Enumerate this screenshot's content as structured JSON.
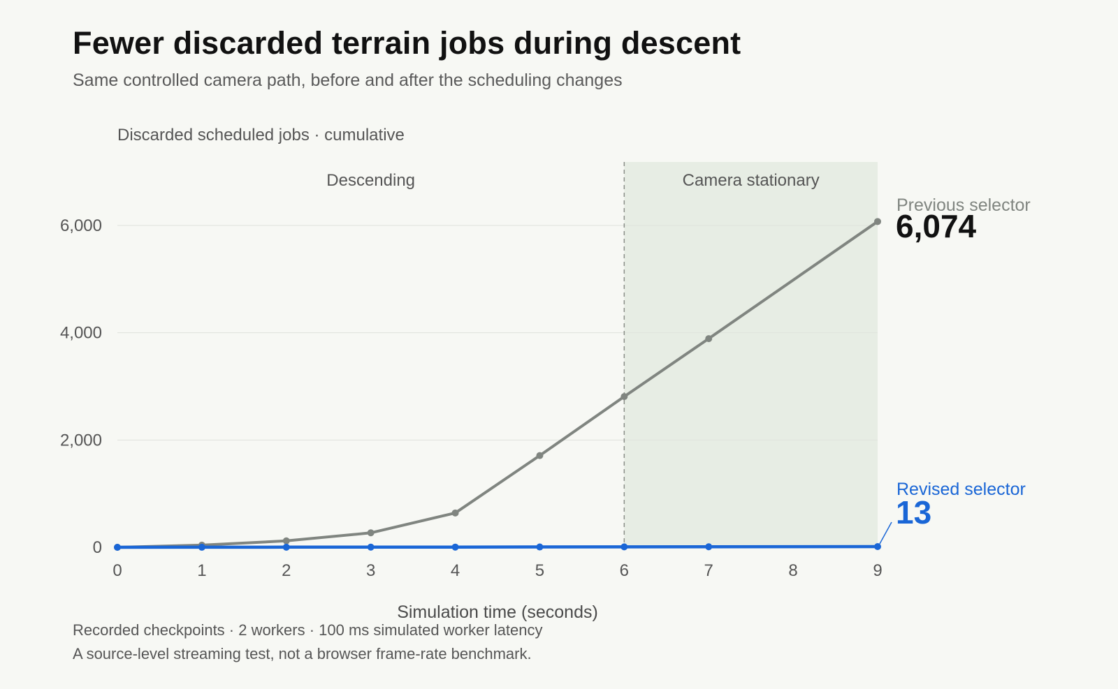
{
  "title": "Fewer discarded terrain jobs during descent",
  "subtitle": "Same controlled camera path, before and after the scheduling changes",
  "footnotes": [
    "Recorded checkpoints · 2 workers · 100 ms simulated worker latency",
    "A source-level streaming test, not a browser frame-rate benchmark."
  ],
  "colors": {
    "previous": "#808580",
    "revised": "#1a66d6",
    "shade": "#e7ede4",
    "grid": "#dfe2dc",
    "background": "#f7f8f4"
  },
  "chart_data": {
    "type": "line",
    "ylabel": "Discarded scheduled jobs · cumulative",
    "xlabel": "Simulation time (seconds)",
    "x": [
      0,
      1,
      2,
      3,
      4,
      5,
      6,
      7,
      8,
      9
    ],
    "xlim": [
      0,
      9
    ],
    "ylim": [
      0,
      6000
    ],
    "yticks": [
      0,
      2000,
      4000,
      6000
    ],
    "ytick_labels": [
      "0",
      "2,000",
      "4,000",
      "6,000"
    ],
    "xtick_labels": [
      "0",
      "1",
      "2",
      "3",
      "4",
      "5",
      "6",
      "7",
      "8",
      "9"
    ],
    "grid": true,
    "regions": [
      {
        "label": "Descending",
        "x_start": 0,
        "x_end": 6,
        "shaded": false
      },
      {
        "label": "Camera stationary",
        "x_start": 6,
        "x_end": 9,
        "shaded": true
      }
    ],
    "series": [
      {
        "name": "Previous selector",
        "end_label": "6,074",
        "points": [
          [
            0,
            0
          ],
          [
            1,
            40
          ],
          [
            2,
            120
          ],
          [
            3,
            270
          ],
          [
            4,
            640
          ],
          [
            5,
            1710
          ],
          [
            6,
            2810
          ],
          [
            7,
            3890
          ],
          [
            9,
            6074
          ]
        ]
      },
      {
        "name": "Revised selector",
        "end_label": "13",
        "points": [
          [
            0,
            0
          ],
          [
            1,
            1
          ],
          [
            2,
            2
          ],
          [
            3,
            3
          ],
          [
            4,
            4
          ],
          [
            5,
            6
          ],
          [
            6,
            8
          ],
          [
            7,
            10
          ],
          [
            9,
            13
          ]
        ]
      }
    ]
  }
}
